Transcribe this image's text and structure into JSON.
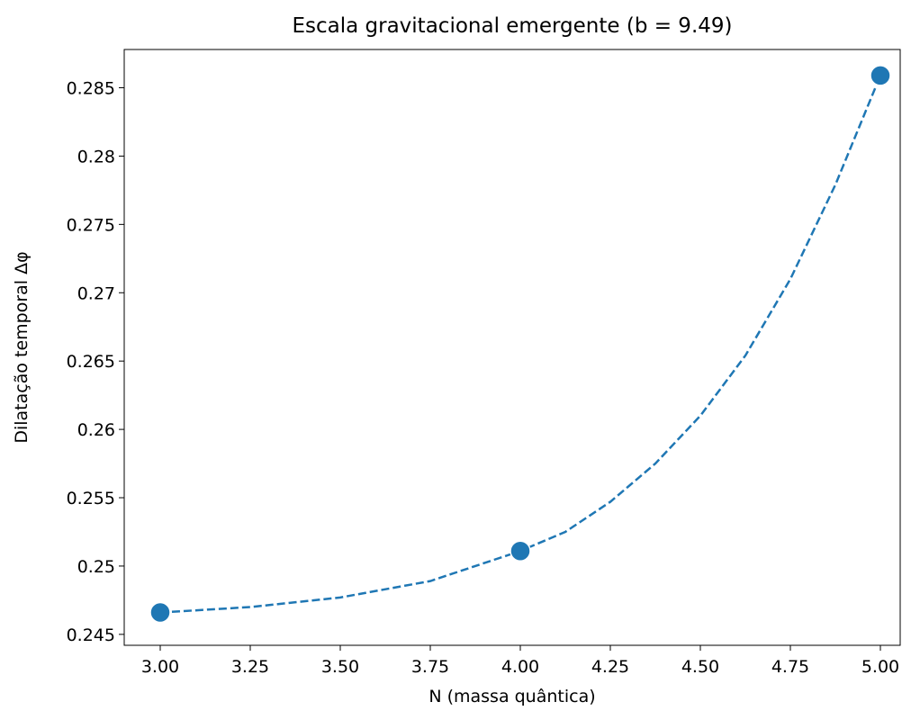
{
  "chart_data": {
    "type": "scatter-fit",
    "title": "Escala gravitacional emergente (b = 9.49)",
    "x_label": "N (massa quântica)",
    "y_label": "Dilatação temporal Δφ",
    "series": [
      {
        "type": "scatter",
        "color": "#1f77b4",
        "x": [
          3,
          4,
          5
        ],
        "values": [
          0.2466,
          0.2511,
          0.2859
        ]
      },
      {
        "type": "line",
        "color": "#1f77b4",
        "dashed": true,
        "x": [
          3.0,
          3.25,
          3.5,
          3.75,
          4.0,
          4.125,
          4.25,
          4.375,
          4.5,
          4.625,
          4.75,
          4.875,
          5.0
        ],
        "values": [
          0.2466,
          0.247,
          0.2477,
          0.2489,
          0.2511,
          0.2525,
          0.2547,
          0.2575,
          0.261,
          0.2654,
          0.271,
          0.2779,
          0.2859
        ]
      }
    ],
    "xlim": [
      2.9,
      5.055
    ],
    "ylim": [
      0.2442,
      0.2878
    ],
    "xticks": [
      {
        "value": 3,
        "label": "3.00"
      },
      {
        "value": 3.25,
        "label": "3.25"
      },
      {
        "value": 3.5,
        "label": "3.50"
      },
      {
        "value": 3.75,
        "label": "3.75"
      },
      {
        "value": 4,
        "label": "4.00"
      },
      {
        "value": 4.25,
        "label": "4.25"
      },
      {
        "value": 4.5,
        "label": "4.50"
      },
      {
        "value": 4.75,
        "label": "4.75"
      },
      {
        "value": 5,
        "label": "5.00"
      }
    ],
    "yticks": [
      0.245,
      0.25,
      0.255,
      0.26,
      0.265,
      0.27,
      0.275,
      0.28,
      0.285
    ]
  }
}
